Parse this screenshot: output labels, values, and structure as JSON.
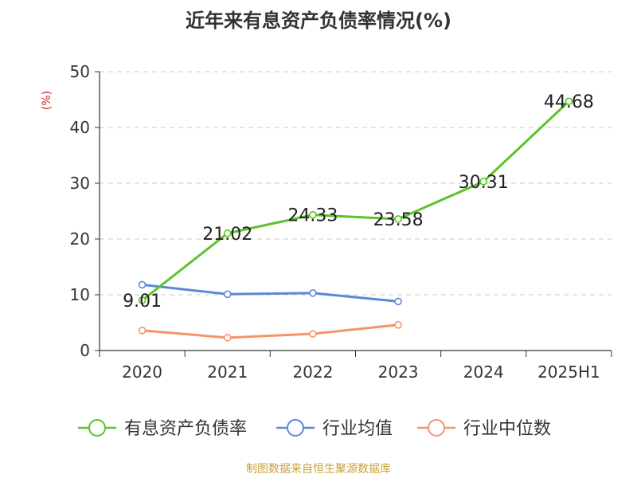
{
  "chart_data": {
    "type": "line",
    "title": "近年来有息资产负债率情况(%)",
    "ylabel": "(%)",
    "xlabel": "",
    "categories": [
      "2020",
      "2021",
      "2022",
      "2023",
      "2024",
      "2025H1"
    ],
    "ylim": [
      0,
      50
    ],
    "yticks": [
      0,
      10,
      20,
      30,
      40,
      50
    ],
    "grid": true,
    "legend_position": "bottom",
    "series": [
      {
        "name": "有息资产负债率",
        "color": "#5cc32a",
        "values": [
          9.01,
          21.02,
          24.33,
          23.58,
          30.31,
          44.68
        ],
        "labels": [
          "9.01",
          "21.02",
          "24.33",
          "23.58",
          "30.31",
          "44.68"
        ]
      },
      {
        "name": "行业均值",
        "color": "#5b88d8",
        "values": [
          11.8,
          10.1,
          10.3,
          8.8,
          null,
          null
        ]
      },
      {
        "name": "行业中位数",
        "color": "#f59567",
        "values": [
          3.6,
          2.3,
          3.0,
          4.6,
          null,
          null
        ]
      }
    ]
  },
  "footer": {
    "source": "制图数据来自恒生聚源数据库",
    "color": "#c9a13a"
  }
}
